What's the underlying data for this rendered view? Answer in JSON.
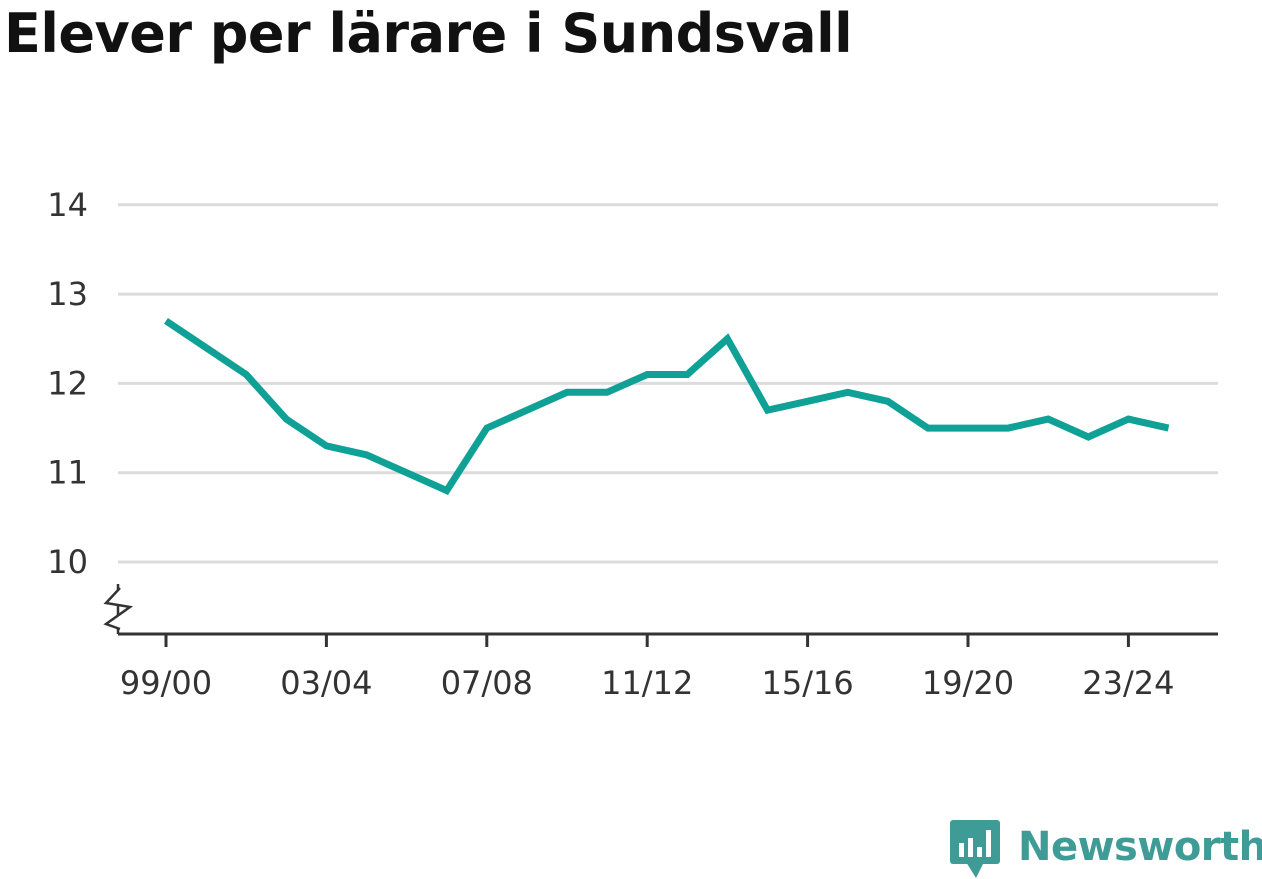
{
  "title": "Elever per lärare i Sundsvall",
  "brand": {
    "name": "Newsworthy",
    "icon": "newsworthy-logo-icon",
    "color": "#3f9b95"
  },
  "chart_data": {
    "type": "line",
    "title": "Elever per lärare i Sundsvall",
    "xlabel": "",
    "ylabel": "",
    "x": [
      "99/00",
      "00/01",
      "01/02",
      "02/03",
      "03/04",
      "04/05",
      "05/06",
      "06/07",
      "07/08",
      "08/09",
      "09/10",
      "10/11",
      "11/12",
      "12/13",
      "13/14",
      "14/15",
      "15/16",
      "16/17",
      "17/18",
      "18/19",
      "19/20",
      "20/21",
      "21/22",
      "22/23",
      "23/24",
      "24/25"
    ],
    "x_tick_labels": [
      "99/00",
      "03/04",
      "07/08",
      "11/12",
      "15/16",
      "19/20",
      "23/24"
    ],
    "series": [
      {
        "values": [
          12.7,
          12.4,
          12.1,
          11.6,
          11.3,
          11.2,
          11.0,
          10.8,
          11.5,
          11.7,
          11.9,
          11.9,
          12.1,
          12.1,
          12.5,
          11.7,
          11.8,
          11.9,
          11.8,
          11.5,
          11.5,
          11.5,
          11.6,
          11.4,
          11.6,
          11.5
        ],
        "color": "#0fa195"
      }
    ],
    "yticks": [
      10,
      11,
      12,
      13,
      14
    ],
    "ylim": [
      9.2,
      14
    ],
    "axis_break": true,
    "grid": true,
    "gridline_color": "#dcdcdc",
    "legend": "none"
  }
}
